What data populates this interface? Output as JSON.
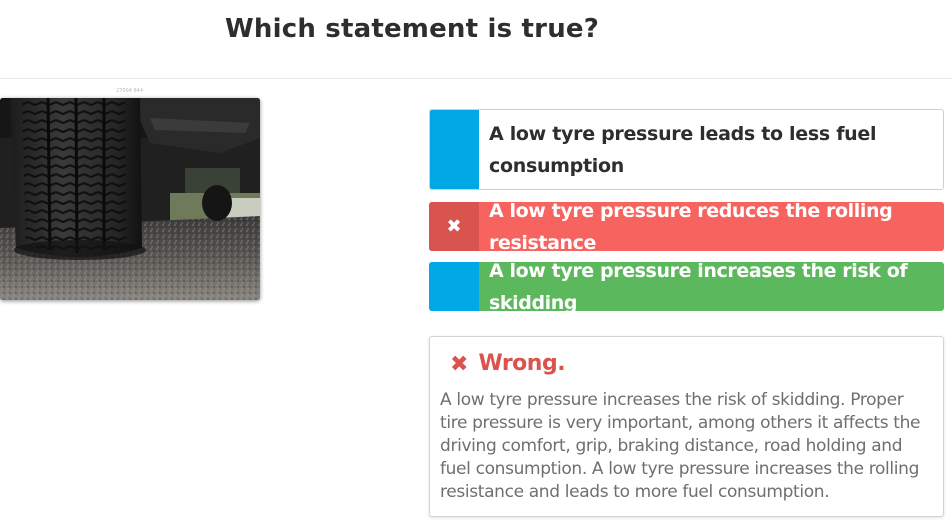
{
  "question": {
    "title": "Which statement is true?"
  },
  "image": {
    "caption": "27004 844"
  },
  "answers": [
    {
      "text": "A low tyre pressure leads to less fuel consumption",
      "state": "unselected",
      "marker_color": "#00a8e6"
    },
    {
      "text": "A low tyre pressure reduces the rolling resistance",
      "state": "selected-wrong",
      "marker_icon": "✖",
      "color": "#f7635f"
    },
    {
      "text": "A low tyre pressure increases the risk of skidding",
      "state": "correct",
      "marker_color": "#00a8e6",
      "color": "#5cb85c"
    }
  ],
  "feedback": {
    "icon": "x-icon",
    "icon_glyph": "✖",
    "title": "Wrong.",
    "body": "A low tyre pressure increases the risk of skidding. Proper tire pressure is very important, among others it affects the driving comfort, grip, braking distance, road holding and fuel consumption. A low tyre pressure increases the rolling resistance and leads to more fuel consumption.",
    "color": "#d9534f"
  }
}
